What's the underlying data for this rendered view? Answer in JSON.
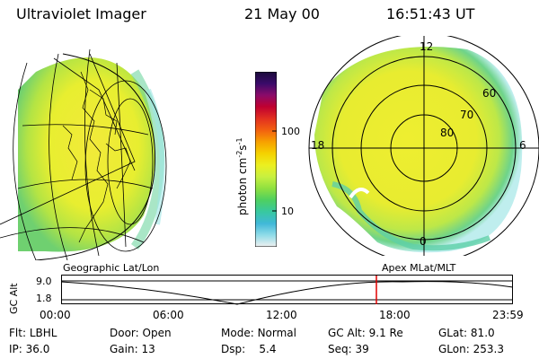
{
  "header": {
    "instrument": "Ultraviolet Imager",
    "date": "21 May 00",
    "time": "16:51:43 UT"
  },
  "polar_plot": {
    "mlt_labels": [
      "12",
      "18",
      "6",
      "0"
    ],
    "mlat_labels": [
      "60",
      "70",
      "80"
    ]
  },
  "colorbar": {
    "unit_label": "photon cm",
    "unit_exp1": "-2",
    "unit_s": "s",
    "unit_exp2": "-1",
    "ticks": [
      "100",
      "10"
    ],
    "colors": [
      "#1a0b3a",
      "#3a0b6a",
      "#8a0b6a",
      "#c00030",
      "#e23020",
      "#f26010",
      "#f7a000",
      "#f5d200",
      "#ecef20",
      "#c8f040",
      "#8ee040",
      "#4ed060",
      "#38c8a0",
      "#40b8d8",
      "#90dce8",
      "#f0f0f0"
    ]
  },
  "timeline": {
    "left_title": "Geographic Lat/Lon",
    "right_title": "Apex MLat/MLT",
    "axis_label": "GC Alt",
    "y_top": "9.0",
    "y_bottom": "1.8",
    "x_ticks": [
      "00:00",
      "06:00",
      "12:00",
      "18:00",
      "23:59"
    ]
  },
  "footer": {
    "flt_label": "Flt:",
    "flt_value": "LBHL",
    "door_label": "Door:",
    "door_value": "Open",
    "mode_label": "Mode:",
    "mode_value": "Normal",
    "gcalt_label": "GC Alt:",
    "gcalt_value": "9.1 Re",
    "glat_label": "GLat:",
    "glat_value": "81.0",
    "ip_label": "IP:",
    "ip_value": "36.0",
    "gain_label": "Gain:",
    "gain_value": "13",
    "dsp_label": "Dsp:",
    "dsp_value": "5.4",
    "seq_label": "Seq:",
    "seq_value": "39",
    "glon_label": "GLon:",
    "glon_value": "253.3"
  }
}
